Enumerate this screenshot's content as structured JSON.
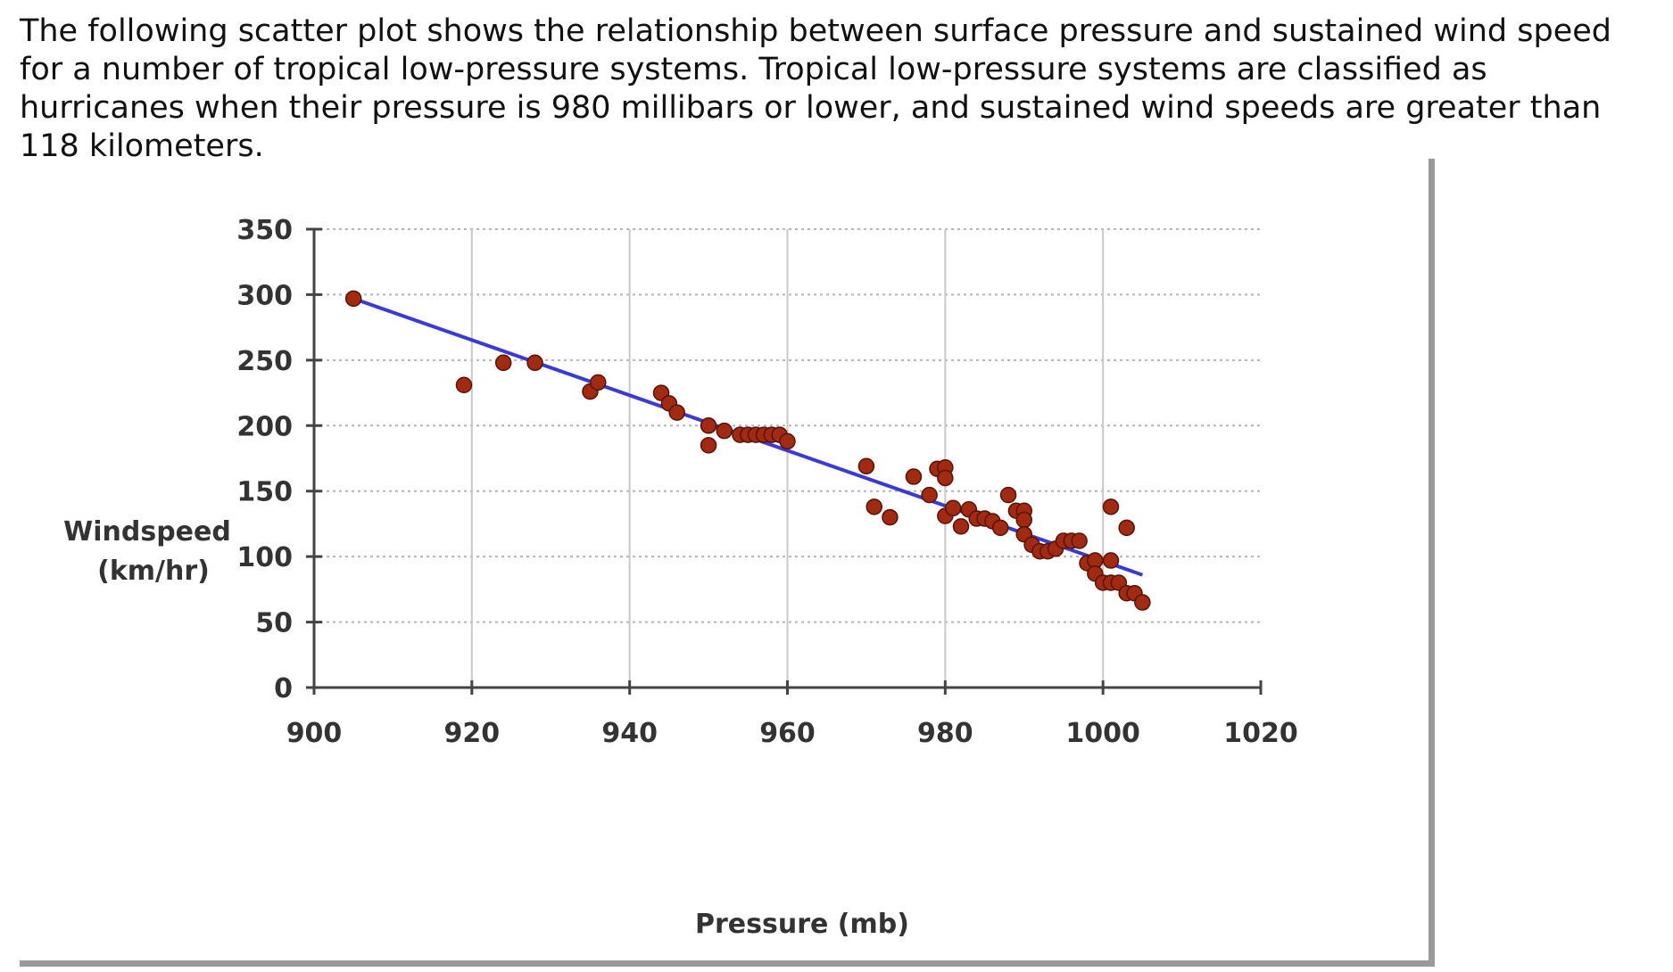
{
  "question": {
    "text": "The following scatter plot shows the relationship between surface pressure and sustained wind speed for a number of tropical low-pressure systems. Tropical low-pressure systems are classified as hurricanes when their pressure is 980 millibars or lower, and sustained wind speeds are greater than 118 kilometers."
  },
  "chart_data": {
    "type": "scatter",
    "title": "",
    "xlabel": "Pressure (mb)",
    "ylabel": [
      "Windspeed",
      "(km/hr)"
    ],
    "xlim": [
      900,
      1020
    ],
    "ylim": [
      0,
      350
    ],
    "x_ticks": [
      900,
      920,
      940,
      960,
      980,
      1000,
      1020
    ],
    "x_tick_labels": [
      "900",
      "920",
      "940",
      "960",
      "980",
      "1000",
      "1020"
    ],
    "y_ticks": [
      0,
      50,
      100,
      150,
      200,
      250,
      300,
      350
    ],
    "y_tick_labels": [
      "0",
      "50",
      "100",
      "150",
      "200",
      "250",
      "300",
      "350"
    ],
    "vertical_gridlines": [
      920,
      940,
      960,
      980,
      1000
    ],
    "horizontal_gridlines": [
      50,
      100,
      150,
      200,
      250,
      300,
      350
    ],
    "point_color": "#a02a12",
    "trendline_color": "#3a3ad6",
    "trendline": {
      "x": [
        905,
        1005
      ],
      "y": [
        297,
        86
      ]
    },
    "points": [
      [
        905,
        297
      ],
      [
        919,
        231
      ],
      [
        924,
        248
      ],
      [
        928,
        248
      ],
      [
        935,
        226
      ],
      [
        936,
        233
      ],
      [
        944,
        225
      ],
      [
        945,
        217
      ],
      [
        946,
        210
      ],
      [
        950,
        185
      ],
      [
        950,
        200
      ],
      [
        952,
        196
      ],
      [
        954,
        193
      ],
      [
        955,
        193
      ],
      [
        956,
        193
      ],
      [
        957,
        193
      ],
      [
        958,
        193
      ],
      [
        959,
        193
      ],
      [
        960,
        188
      ],
      [
        970,
        169
      ],
      [
        971,
        138
      ],
      [
        973,
        130
      ],
      [
        976,
        161
      ],
      [
        979,
        167
      ],
      [
        980,
        168
      ],
      [
        980,
        160
      ],
      [
        978,
        147
      ],
      [
        980,
        131
      ],
      [
        981,
        137
      ],
      [
        982,
        123
      ],
      [
        983,
        136
      ],
      [
        984,
        129
      ],
      [
        985,
        129
      ],
      [
        986,
        127
      ],
      [
        987,
        122
      ],
      [
        988,
        147
      ],
      [
        989,
        135
      ],
      [
        990,
        135
      ],
      [
        990,
        128
      ],
      [
        990,
        117
      ],
      [
        991,
        109
      ],
      [
        992,
        104
      ],
      [
        993,
        104
      ],
      [
        994,
        106
      ],
      [
        995,
        112
      ],
      [
        996,
        112
      ],
      [
        997,
        112
      ],
      [
        998,
        95
      ],
      [
        999,
        97
      ],
      [
        999,
        87
      ],
      [
        1000,
        80
      ],
      [
        1001,
        80
      ],
      [
        1001,
        138
      ],
      [
        1001,
        97
      ],
      [
        1002,
        80
      ],
      [
        1003,
        122
      ],
      [
        1003,
        72
      ],
      [
        1004,
        72
      ],
      [
        1005,
        65
      ]
    ]
  }
}
